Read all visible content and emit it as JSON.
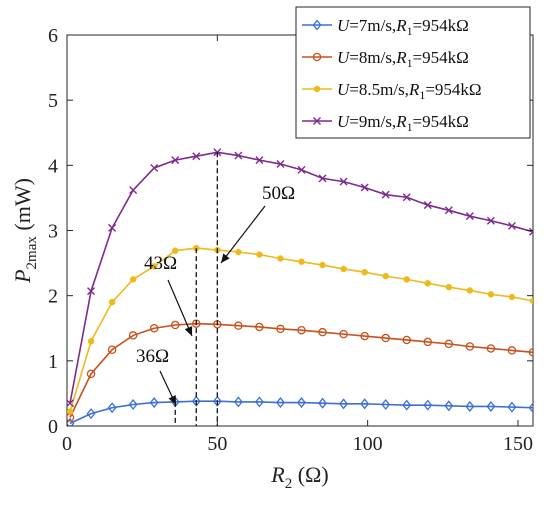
{
  "chart_data": {
    "type": "line",
    "xlabel": "R2 (Ω)",
    "ylabel": "P2max (mW)",
    "xlim": [
      0,
      155
    ],
    "ylim": [
      0,
      6
    ],
    "x_ticks": [
      0,
      50,
      100,
      150
    ],
    "y_ticks": [
      0,
      1,
      2,
      3,
      4,
      5,
      6
    ],
    "legend_placement": "top-right",
    "grid": false,
    "x": [
      1,
      8,
      15,
      22,
      29,
      36,
      43,
      50,
      57,
      64,
      71,
      78,
      85,
      92,
      99,
      106,
      113,
      120,
      127,
      134,
      141,
      148,
      155
    ],
    "series": [
      {
        "name": "U=7m/s,R1=954kΩ",
        "legend_parts": {
          "var": "U",
          "speed": "=7m/s,",
          "rvar": "R",
          "rsub": "1",
          "rval": "=954kΩ"
        },
        "color": "#3b6fd6",
        "marker": "diamond",
        "values": [
          0.04,
          0.19,
          0.28,
          0.33,
          0.36,
          0.37,
          0.38,
          0.38,
          0.37,
          0.37,
          0.36,
          0.36,
          0.35,
          0.34,
          0.34,
          0.33,
          0.32,
          0.32,
          0.31,
          0.3,
          0.3,
          0.29,
          0.28
        ]
      },
      {
        "name": "U=8m/s,R1=954kΩ",
        "legend_parts": {
          "var": "U",
          "speed": "=8m/s,",
          "rvar": "R",
          "rsub": "1",
          "rval": "=954kΩ"
        },
        "color": "#c9501c",
        "marker": "circle",
        "values": [
          0.13,
          0.8,
          1.17,
          1.39,
          1.5,
          1.55,
          1.57,
          1.56,
          1.54,
          1.52,
          1.49,
          1.47,
          1.44,
          1.41,
          1.38,
          1.35,
          1.32,
          1.29,
          1.26,
          1.22,
          1.19,
          1.16,
          1.13
        ]
      },
      {
        "name": "U=8.5m/s,R1=954kΩ",
        "legend_parts": {
          "var": "U",
          "speed": "=8.5m/s,",
          "rvar": "R",
          "rsub": "1",
          "rval": "=954kΩ"
        },
        "color": "#efb91a",
        "marker": "dot",
        "values": [
          0.22,
          1.3,
          1.9,
          2.25,
          2.45,
          2.69,
          2.73,
          2.7,
          2.67,
          2.63,
          2.57,
          2.52,
          2.47,
          2.41,
          2.36,
          2.3,
          2.25,
          2.19,
          2.13,
          2.08,
          2.02,
          1.98,
          1.92
        ]
      },
      {
        "name": "U=9m/s,R1=954kΩ",
        "legend_parts": {
          "var": "U",
          "speed": "=9m/s,",
          "rvar": "R",
          "rsub": "1",
          "rval": "=954kΩ"
        },
        "color": "#7e2a8e",
        "marker": "x",
        "values": [
          0.35,
          2.07,
          3.04,
          3.62,
          3.96,
          4.08,
          4.14,
          4.2,
          4.15,
          4.08,
          4.02,
          3.93,
          3.8,
          3.75,
          3.66,
          3.55,
          3.51,
          3.39,
          3.31,
          3.22,
          3.15,
          3.07,
          2.98
        ]
      }
    ],
    "annotations": [
      {
        "text": "50Ω",
        "x": 50
      },
      {
        "text": "43Ω",
        "x": 43
      },
      {
        "text": "36Ω",
        "x": 36
      }
    ]
  }
}
